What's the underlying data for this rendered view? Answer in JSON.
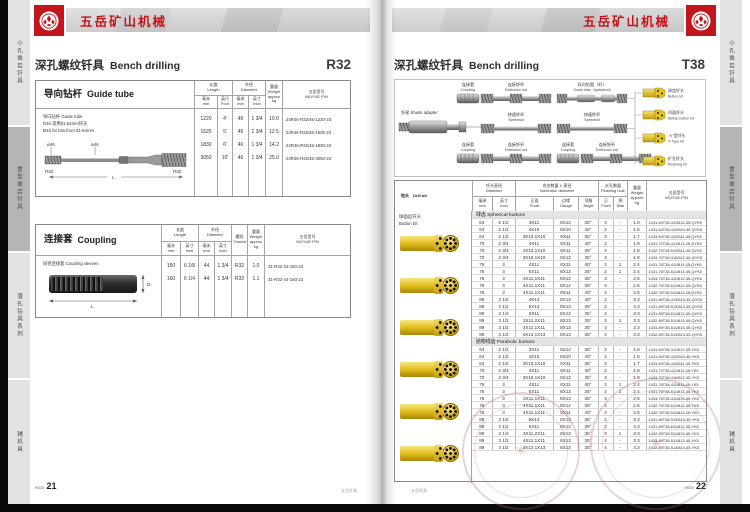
{
  "brand": {
    "name": "五岳矿山机械"
  },
  "sidebar": {
    "tabs": [
      {
        "label": "小孔凿岩钎具",
        "active": false
      },
      {
        "label": "重型凿岩钎具",
        "active": true
      },
      {
        "label": "潜孔钻具系列",
        "active": false
      },
      {
        "label": "辅机具",
        "active": false
      }
    ]
  },
  "footer": {
    "page_word": "PAGE",
    "mark": "五岳钎具"
  },
  "left_page": {
    "title_cn": "深孔螺纹钎具",
    "title_en": "Bench drilling",
    "series": "R32",
    "page_number": "21",
    "guide_tube": {
      "name_cn": "导向钻杆",
      "name_en": "Guide tube",
      "headers": {
        "length": {
          "cn": "长度",
          "en": "Length"
        },
        "length_mm": {
          "cn": "毫米",
          "en": "mm"
        },
        "length_ft": {
          "cn": "英尺",
          "en": "Foot"
        },
        "dia": {
          "cn": "外径",
          "en": "Diameter"
        },
        "dia_mm": {
          "cn": "毫米",
          "en": "mm"
        },
        "dia_in": {
          "cn": "英寸",
          "en": "inch"
        },
        "weight": {
          "cn": "重量",
          "en": "Weight",
          "l3": "approx",
          "l4": "kg"
        },
        "pn": {
          "cn": "五岳型号",
          "en": "WUYUE  P/N"
        }
      },
      "desc": [
        "导向钻杆  Guide tube",
        "D46 适用51-64mm钎头",
        "D46 for bits from 51-64mm"
      ],
      "diagram": {
        "dia": "ø46",
        "thread": "R32",
        "len": "L"
      },
      "rows": [
        [
          "1220",
          "4'",
          "46",
          "1 3/4",
          "10.0",
          "24R46-R32/46-1220-23"
        ],
        [
          "1525",
          "5'",
          "46",
          "1 3/4",
          "12.5",
          "24R46-R32/46-1525-23"
        ],
        [
          "1830",
          "6'",
          "46",
          "1 3/4",
          "14.2",
          "24R46-R32/46-1830-23"
        ],
        [
          "3050",
          "10'",
          "46",
          "1 3/4",
          "25.0",
          "24R46-R32/46-3050-23"
        ]
      ]
    },
    "coupling": {
      "name_cn": "连接套",
      "name_en": "Coupling",
      "headers": {
        "length": {
          "cn": "长度",
          "en": "Length"
        },
        "length_mm": {
          "cn": "毫米",
          "en": "mm"
        },
        "length_in": {
          "cn": "英寸",
          "en": "inch"
        },
        "dia": {
          "cn": "外径",
          "en": "Diameter"
        },
        "dia_mm": {
          "cn": "毫米",
          "en": "mm"
        },
        "dia_in": {
          "cn": "英寸",
          "en": "inch"
        },
        "thread": {
          "cn": "螺纹",
          "en": "Thread"
        },
        "weight": {
          "cn": "重量",
          "en": "Weight",
          "l3": "approx",
          "l4": "kg"
        },
        "pn": {
          "cn": "五岳型号",
          "en": "WUYUE  P/N"
        }
      },
      "desc": [
        "同径连接套  Coupling sleeves"
      ],
      "diagram": {
        "d": "D",
        "l": "L"
      },
      "rows": [
        [
          "150",
          "6 1/8",
          "44",
          "1 3/4",
          "R32",
          "1.0",
          "31-R32-44-150-23"
        ],
        [
          "160",
          "6 1/4",
          "44",
          "1 3/4",
          "R32",
          "1.1",
          "31-R32-44-160-23"
        ]
      ]
    }
  },
  "right_page": {
    "title_cn": "深孔螺纹钎具",
    "title_en": "Bench drilling",
    "series": "T38",
    "page_number": "22",
    "diagram": {
      "shank": {
        "cn": "钎尾",
        "en": "Shank adapter"
      },
      "coupling": {
        "cn": "连接套",
        "en": "Coupling"
      },
      "extension": {
        "cn": "连接钎杆",
        "en": "Extension rod"
      },
      "guide": {
        "cn": "导向钻管（杆）",
        "en": "Guide tube（speedrod)"
      },
      "speedrod": {
        "cn": "快速钎杆",
        "en": "Speedrod"
      },
      "bits": [
        {
          "cn": "球齿钎头",
          "en": "Button bit"
        },
        {
          "cn": "凹面钎头",
          "en": "Retrac button bit"
        },
        {
          "cn": "\"X\"型钎头",
          "en": "X-Type bit"
        },
        {
          "cn": "扩孔钎头",
          "en": "Reaming bit"
        }
      ]
    },
    "drill_bit": {
      "name_cn": "钻头",
      "name_en": "Drill bit",
      "headers": {
        "dia": {
          "cn": "钎头直径",
          "en": "Diameter"
        },
        "mm": {
          "cn": "毫米",
          "en": "mm"
        },
        "inch": {
          "cn": "英寸",
          "en": "inch"
        },
        "buttons": {
          "cn": "合金数量 X 直径",
          "en": "No/button diameter"
        },
        "front": {
          "cn": "正面",
          "en": "Front"
        },
        "gauge": {
          "cn": "边缘",
          "en": "Gauge"
        },
        "angle": {
          "cn": "顶角",
          "en": "Angle"
        },
        "flushing": {
          "cn": "水孔数量",
          "en": "Flushing hole"
        },
        "ffront": {
          "cn": "正",
          "en": "Front"
        },
        "fside": {
          "cn": "侧",
          "en": "Side"
        },
        "weight": {
          "cn": "重量",
          "en": "Weight",
          "l3": "Approx",
          "l4": "kg"
        },
        "pn": {
          "cn": "五岳型号",
          "en": "WUYUE  P/N"
        }
      },
      "bit_label": {
        "cn": "球面齿钎头",
        "en": "Button bit"
      },
      "sections": [
        {
          "label": "球齿  Spherical buttons",
          "rows": [
            [
              "64",
              "2 1/2",
              "3X11",
              "6X12",
              "35°",
              "3",
              "-",
              "1.8",
              "1431-64T38-311/612-45-QYK5"
            ],
            [
              "64",
              "2 1/2",
              "4X10",
              "6X10",
              "40°",
              "2",
              "-",
              "1.6",
              "1431-64T38-410/610-45-QYK5"
            ],
            [
              "64",
              "2 1/2",
              "3X10,1X10",
              "6X11",
              "35°",
              "3",
              "-",
              "1.7",
              "1433-64T38-410/611-45-QYK5"
            ],
            [
              "70",
              "2 3/4",
              "4X11",
              "8X11",
              "40°",
              "2",
              "-",
              "1.9",
              "1431-70T38-411/811-45-QYK5"
            ],
            [
              "70",
              "2 3/4",
              "4X10,1X10",
              "8X11",
              "35°",
              "4",
              "-",
              "1.9",
              "1432-70T38-510/811-45-QYK5"
            ],
            [
              "70",
              "2 3/4",
              "3X10,1X10",
              "6X12",
              "35°",
              "3",
              "-",
              "1.8",
              "1433-70T38-410/612-45-QYK5"
            ],
            [
              "76",
              "3",
              "4X11",
              "8X11",
              "40°",
              "2",
              "1",
              "2.4",
              "1431-76T38-411/811-45-QYK5"
            ],
            [
              "76",
              "3",
              "5X11",
              "8X13",
              "35°",
              "2",
              "1",
              "2.4",
              "1431-76T38-511/813-45-QYK5"
            ],
            [
              "76",
              "3",
              "3X11,1X11",
              "6X12",
              "35°",
              "3",
              "-",
              "2.6",
              "1433-76T38-411/612-45-QYK5"
            ],
            [
              "76",
              "3",
              "4X11,1X11",
              "8X12",
              "35°",
              "4",
              "-",
              "2.6",
              "1432-76T38-511/812-45-QYK5"
            ],
            [
              "76",
              "3",
              "4X11,1X11",
              "8X11",
              "40°",
              "4",
              "-",
              "2.6",
              "1432-76T38-511/811-45-QYK5"
            ],
            [
              "89",
              "3 1/2",
              "4X13",
              "8X13",
              "40°",
              "2",
              "-",
              "3.3",
              "1431-89T38-413/813-45-QYK5"
            ],
            [
              "89",
              "3 1/2",
              "5X13",
              "8X13",
              "35°",
              "2",
              "-",
              "3.3",
              "1431-89T38-513/813-45-QYK5"
            ],
            [
              "89",
              "3 1/2",
              "6X11",
              "8X12",
              "35°",
              "2",
              "-",
              "3.3",
              "1431-89T38-611/812-45-QYK5"
            ],
            [
              "89",
              "3 1/2",
              "3X11,2X11",
              "8X13",
              "35°",
              "3",
              "1",
              "3.3",
              "1432-89T38-511/813-45-QYK5"
            ],
            [
              "89",
              "3 1/2",
              "4X11,1X11",
              "8X13",
              "35°",
              "4",
              "-",
              "3.3",
              "1433-89T38-511/813-45-QYK5"
            ],
            [
              "89",
              "3 1/2",
              "4X13,1X13",
              "8X13",
              "35°",
              "4",
              "-",
              "3.3",
              "1432-89T38-513/813-45-QYK5"
            ]
          ]
        },
        {
          "label": "抛物线齿  Parabolic buttons",
          "rows": [
            [
              "64",
              "2 1/2",
              "3X11",
              "6X12",
              "35°",
              "3",
              "-",
              "1.8",
              "1431-64T38-311/612-45-YK5"
            ],
            [
              "64",
              "2 1/2",
              "4X10",
              "6X10",
              "40°",
              "2",
              "-",
              "1.6",
              "1431-64T38-410/610-45-YK5"
            ],
            [
              "64",
              "2 1/2",
              "3X10,1X10",
              "6X11",
              "35°",
              "3",
              "-",
              "1.7",
              "1433-64T38-410/611-45-YK5"
            ],
            [
              "70",
              "2 3/4",
              "4X11",
              "8X11",
              "40°",
              "2",
              "-",
              "1.9",
              "1431-70T38-411/811-45-YK5"
            ],
            [
              "70",
              "2 3/4",
              "3X10,1X10",
              "6X12",
              "35°",
              "3",
              "-",
              "1.8",
              "1433-70T38-410/612-45-YK5"
            ],
            [
              "76",
              "3",
              "4X11",
              "8X11",
              "40°",
              "2",
              "1",
              "2.4",
              "1431-76T38-411/811-45-YK5"
            ],
            [
              "76",
              "3",
              "5X11",
              "8X13",
              "35°",
              "2",
              "1",
              "2.4",
              "1431-76T38-511/813-45-YK5"
            ],
            [
              "76",
              "3",
              "3X11,1X11",
              "6X13",
              "35°",
              "3",
              "-",
              "2.6",
              "1433-76T38-411/613-45-YK5"
            ],
            [
              "76",
              "3",
              "4X11,1X11",
              "8X12",
              "35°",
              "4",
              "-",
              "2.6",
              "1432-76T38-511/812-45-YK5"
            ],
            [
              "76",
              "3",
              "4X11,1X11",
              "8X11",
              "40°",
              "4",
              "-",
              "2.6",
              "1432-76T38-511/811-45-YK5"
            ],
            [
              "89",
              "3 1/2",
              "5X13",
              "8X13",
              "35°",
              "2",
              "-",
              "3.3",
              "1431-89T38-513/813-45-YK5"
            ],
            [
              "89",
              "3 1/2",
              "6X11",
              "8X12",
              "35°",
              "2",
              "-",
              "3.3",
              "1431-89T38-611/812-45-YK5"
            ],
            [
              "89",
              "3 1/2",
              "3X11,2X11",
              "8X13",
              "35°",
              "3",
              "1",
              "3.3",
              "1432-89T38-511/813-45-YK5"
            ],
            [
              "89",
              "3 1/2",
              "4X11,1X11",
              "8X13",
              "35°",
              "4",
              "-",
              "3.3",
              "1433-89T38-511/813-45-YK5"
            ],
            [
              "89",
              "3 1/2",
              "4X13,1X13",
              "8X13",
              "35°",
              "4",
              "-",
              "3.3",
              "1432-89T38-513/813-45-YK5"
            ]
          ]
        }
      ]
    }
  }
}
